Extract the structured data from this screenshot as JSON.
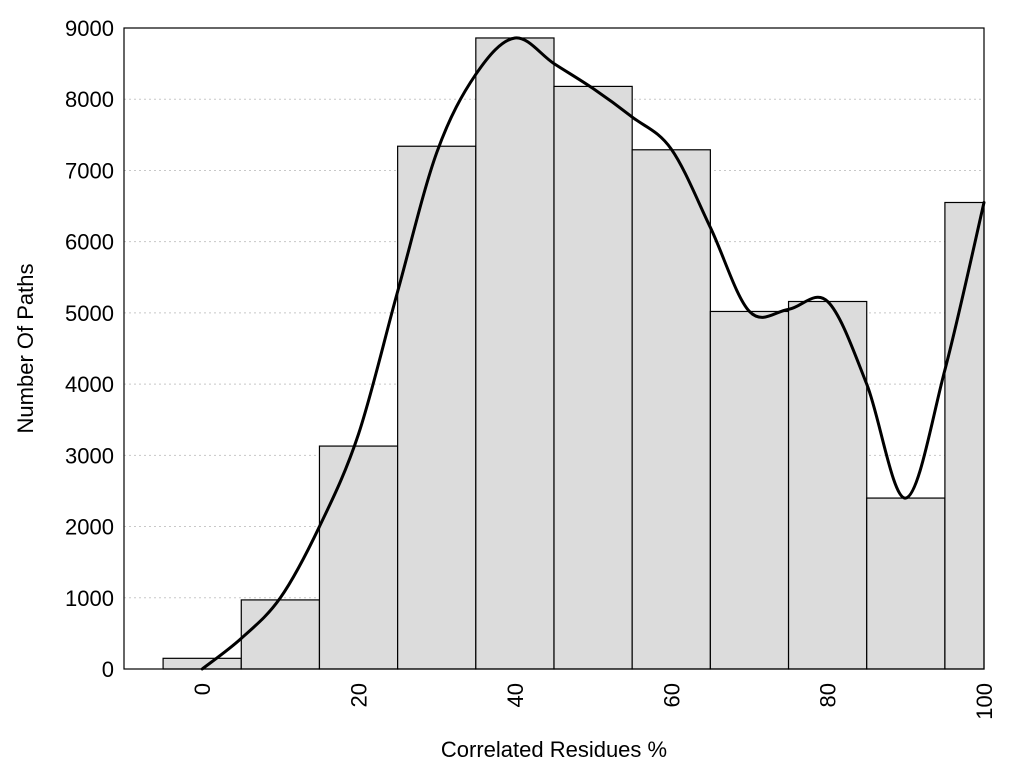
{
  "chart_data": {
    "type": "bar",
    "title": "",
    "xlabel": "Correlated Residues %",
    "ylabel": "Number Of Paths",
    "xlim": [
      -10,
      100
    ],
    "ylim": [
      0,
      9000
    ],
    "grid": "horizontal",
    "x_ticks": [
      0,
      20,
      40,
      60,
      80,
      100
    ],
    "y_ticks": [
      0,
      1000,
      2000,
      3000,
      4000,
      5000,
      6000,
      7000,
      8000,
      9000
    ],
    "bin_width": 10,
    "bars": [
      {
        "x": 0,
        "value": 150
      },
      {
        "x": 10,
        "value": 970
      },
      {
        "x": 20,
        "value": 3130
      },
      {
        "x": 30,
        "value": 7340
      },
      {
        "x": 40,
        "value": 8860
      },
      {
        "x": 50,
        "value": 8180
      },
      {
        "x": 60,
        "value": 7290
      },
      {
        "x": 70,
        "value": 5020
      },
      {
        "x": 80,
        "value": 5160
      },
      {
        "x": 90,
        "value": 2400
      },
      {
        "x": 100,
        "value": 6550
      }
    ],
    "curve": {
      "x": [
        0,
        5,
        10,
        15,
        20,
        25,
        30,
        35,
        40,
        45,
        50,
        55,
        60,
        65,
        70,
        75,
        80,
        85,
        90,
        95,
        100
      ],
      "y": [
        0,
        430,
        1000,
        2000,
        3300,
        5300,
        7250,
        8350,
        8860,
        8500,
        8150,
        7750,
        7300,
        6200,
        5020,
        5050,
        5160,
        4000,
        2400,
        4200,
        6550
      ]
    },
    "colors": {
      "bar_fill": "#dcdcdc",
      "bar_stroke": "#000000",
      "curve": "#000000"
    }
  }
}
